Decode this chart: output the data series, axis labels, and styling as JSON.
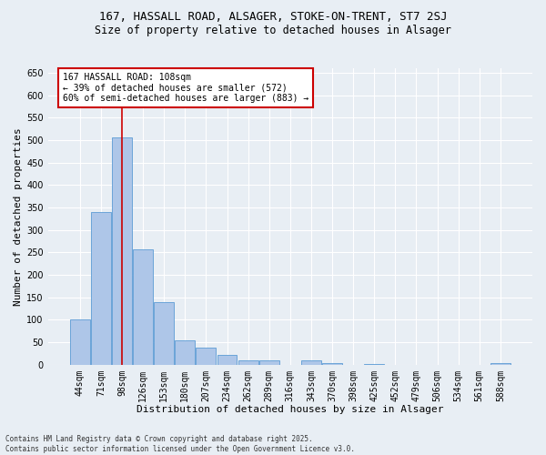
{
  "title": "167, HASSALL ROAD, ALSAGER, STOKE-ON-TRENT, ST7 2SJ",
  "subtitle": "Size of property relative to detached houses in Alsager",
  "xlabel": "Distribution of detached houses by size in Alsager",
  "ylabel": "Number of detached properties",
  "categories": [
    "44sqm",
    "71sqm",
    "98sqm",
    "126sqm",
    "153sqm",
    "180sqm",
    "207sqm",
    "234sqm",
    "262sqm",
    "289sqm",
    "316sqm",
    "343sqm",
    "370sqm",
    "398sqm",
    "425sqm",
    "452sqm",
    "479sqm",
    "506sqm",
    "534sqm",
    "561sqm",
    "588sqm"
  ],
  "values": [
    100,
    340,
    507,
    257,
    140,
    55,
    38,
    22,
    9,
    9,
    0,
    9,
    4,
    0,
    1,
    0,
    0,
    0,
    0,
    0,
    4
  ],
  "bar_color": "#aec6e8",
  "bar_edge_color": "#5b9bd5",
  "background_color": "#e8eef4",
  "grid_color": "#ffffff",
  "vline_x": 2,
  "vline_color": "#cc0000",
  "annotation_text": "167 HASSALL ROAD: 108sqm\n← 39% of detached houses are smaller (572)\n60% of semi-detached houses are larger (883) →",
  "annotation_box_color": "#cc0000",
  "ylim": [
    0,
    660
  ],
  "yticks": [
    0,
    50,
    100,
    150,
    200,
    250,
    300,
    350,
    400,
    450,
    500,
    550,
    600,
    650
  ],
  "footer": "Contains HM Land Registry data © Crown copyright and database right 2025.\nContains public sector information licensed under the Open Government Licence v3.0.",
  "title_fontsize": 9,
  "subtitle_fontsize": 8.5,
  "xlabel_fontsize": 8,
  "ylabel_fontsize": 8,
  "tick_fontsize": 7,
  "annotation_fontsize": 7,
  "footer_fontsize": 5.5
}
